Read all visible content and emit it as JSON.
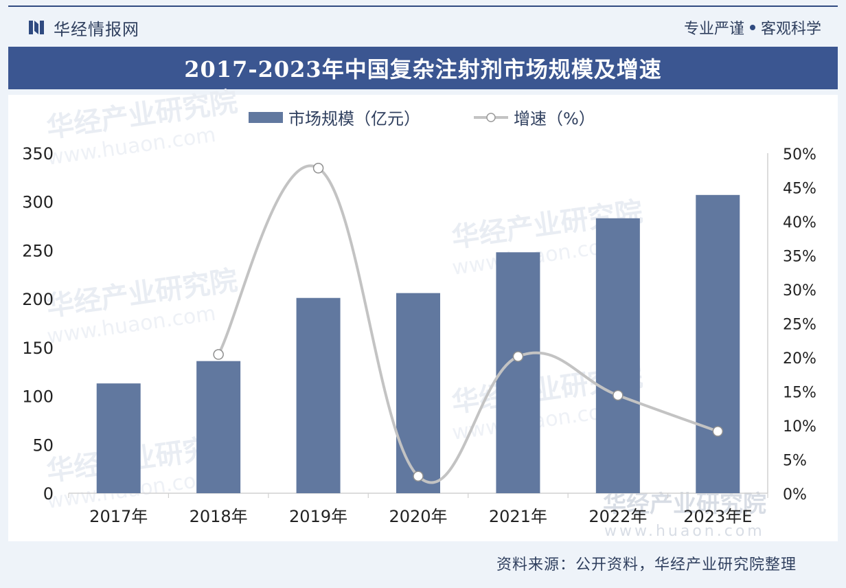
{
  "header": {
    "brand": "华经情报网",
    "tagline_left": "专业严谨",
    "tagline_right": "客观科学"
  },
  "title": "2017-2023年中国复杂注射剂市场规模及增速",
  "source": "资料来源：公开资料，华经产业研究院整理",
  "watermark": {
    "name": "华经产业研究院",
    "url": "www.huaon.com"
  },
  "colors": {
    "bar": "#61789f",
    "line": "#c3c3c3",
    "title_bg": "#3b5691",
    "text": "#2f3f5e"
  },
  "chart_data": {
    "type": "bar",
    "title": "2017-2023年中国复杂注射剂市场规模及增速",
    "categories": [
      "2017年",
      "2018年",
      "2019年",
      "2020年",
      "2021年",
      "2022年",
      "2023年E"
    ],
    "series": [
      {
        "name": "市场规模（亿元）",
        "type": "bar",
        "axis": "left",
        "values": [
          113,
          136,
          201,
          206,
          248,
          283,
          307
        ]
      },
      {
        "name": "增速（%）",
        "type": "line",
        "axis": "right",
        "values": [
          null,
          20.4,
          47.8,
          2.5,
          20.1,
          14.4,
          9.1
        ]
      }
    ],
    "y_left": {
      "min": 0,
      "max": 350,
      "ticks": [
        0,
        50,
        100,
        150,
        200,
        250,
        300,
        350
      ]
    },
    "y_right": {
      "min": 0,
      "max": 50,
      "ticks": [
        "0%",
        "5%",
        "10%",
        "15%",
        "20%",
        "25%",
        "30%",
        "35%",
        "40%",
        "45%",
        "50%"
      ]
    },
    "legend_position": "top-center",
    "grid": false
  }
}
